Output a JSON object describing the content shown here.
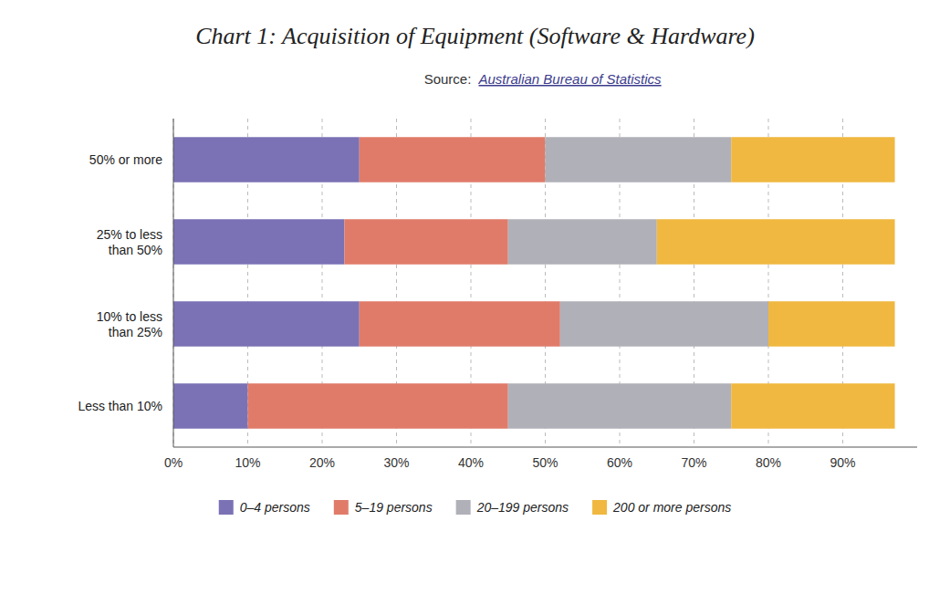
{
  "chart_data": {
    "type": "bar",
    "orientation": "horizontal",
    "stacked": true,
    "title": "Chart 1: Acquisition of Equipment (Software & Hardware)",
    "annotations": [
      "Source: ",
      "Australian Bureau of Statistics"
    ],
    "categories": [
      "50% or more",
      "25% to less\nthan 50%",
      "10% to less\nthan 25%",
      "Less than 10%"
    ],
    "series": [
      {
        "name": "0–4 persons",
        "color": "#7b72b5",
        "values": [
          25,
          23,
          25,
          10
        ]
      },
      {
        "name": "5–19 persons",
        "color": "#e07b6a",
        "values": [
          25,
          22,
          27,
          35
        ]
      },
      {
        "name": "20–199 persons",
        "color": "#b0b0b8",
        "values": [
          25,
          20,
          28,
          30
        ]
      },
      {
        "name": "200 or more persons",
        "color": "#f0b840",
        "values": [
          22,
          32,
          17,
          22
        ]
      }
    ],
    "xlim": [
      0,
      100
    ],
    "xticks": [
      {
        "value": 0,
        "label": "0%"
      },
      {
        "value": 10,
        "label": "10%"
      },
      {
        "value": 20,
        "label": "20%"
      },
      {
        "value": 30,
        "label": "30%"
      },
      {
        "value": 40,
        "label": "40%"
      },
      {
        "value": 50,
        "label": "50%"
      },
      {
        "value": 60,
        "label": "60%"
      },
      {
        "value": 70,
        "label": "70%"
      },
      {
        "value": 80,
        "label": "80%"
      },
      {
        "value": 90,
        "label": "90%"
      }
    ],
    "grid": true,
    "legend": "bottom"
  }
}
